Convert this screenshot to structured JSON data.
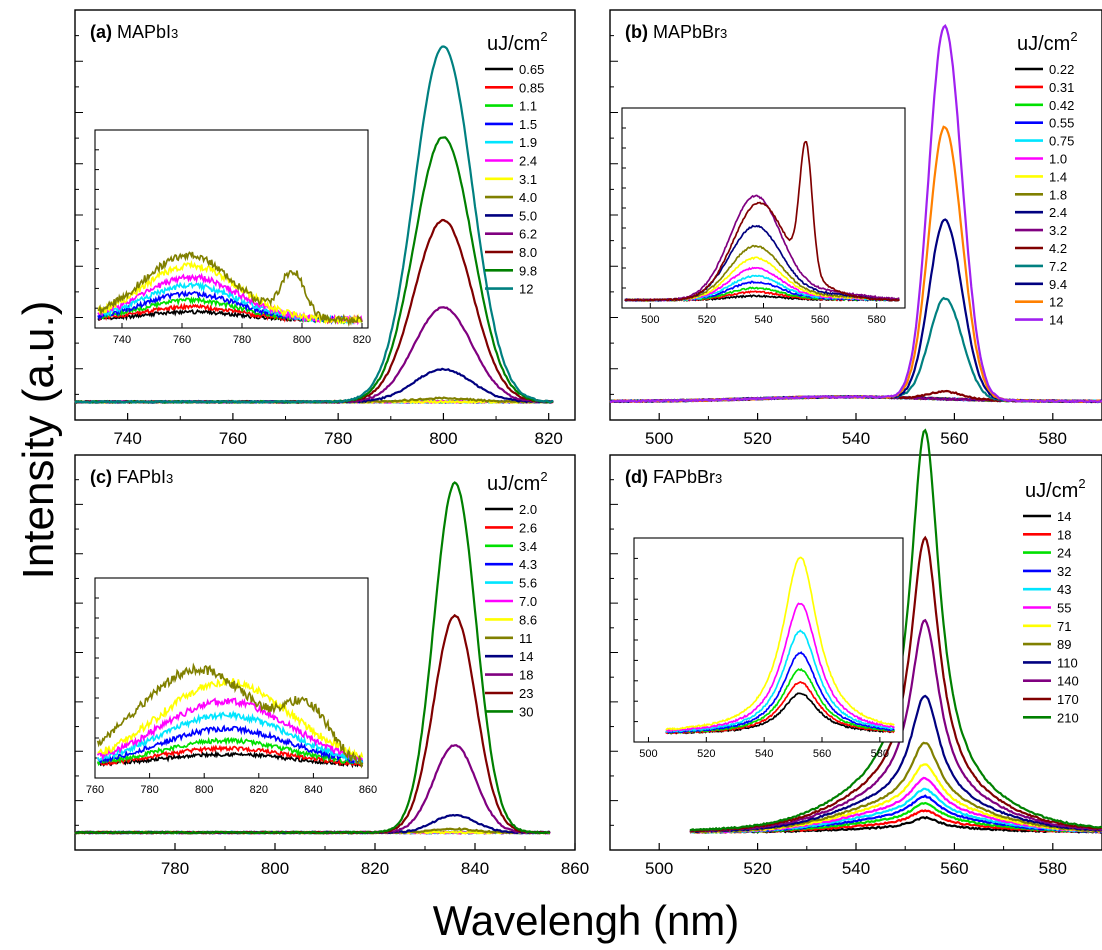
{
  "figure": {
    "ylabel": "Intensity (a.u.)",
    "xlabel": "Wavelengh (nm)",
    "legend_title": "uJ/cm",
    "legend_title_sup": "2"
  },
  "chart_data": [
    {
      "type": "line",
      "panel_label": "(a)",
      "title": "MAPbI",
      "title_sub": "3",
      "xlim": [
        730,
        825
      ],
      "ylim": [
        -0.05,
        1.08
      ],
      "xticks": [
        740,
        760,
        780,
        800,
        820
      ],
      "grid": false,
      "legend_position": "top-right",
      "peak": {
        "center": 800,
        "width": 5.5,
        "shift": -0.06
      },
      "series": [
        {
          "name": "0.65",
          "color": "#000000",
          "peak": 0.0
        },
        {
          "name": "0.85",
          "color": "#ff0000",
          "peak": 0.0
        },
        {
          "name": "1.1",
          "color": "#00e000",
          "peak": 0.0
        },
        {
          "name": "1.5",
          "color": "#0000ff",
          "peak": 0.0
        },
        {
          "name": "1.9",
          "color": "#00e5ff",
          "peak": 0.0
        },
        {
          "name": "2.4",
          "color": "#ff00ff",
          "peak": 0.0
        },
        {
          "name": "3.1",
          "color": "#ffff00",
          "peak": 0.0
        },
        {
          "name": "4.0",
          "color": "#808000",
          "peak": 0.01
        },
        {
          "name": "5.0",
          "color": "#000080",
          "peak": 0.09
        },
        {
          "name": "6.2",
          "color": "#800080",
          "peak": 0.26
        },
        {
          "name": "8.0",
          "color": "#800000",
          "peak": 0.5
        },
        {
          "name": "9.8",
          "color": "#008000",
          "peak": 0.73
        },
        {
          "name": "12",
          "color": "#008080",
          "peak": 0.98
        }
      ],
      "inset": {
        "xlim": [
          731,
          822
        ],
        "xticks": [
          740,
          760,
          780,
          800,
          820
        ],
        "series_amplitudes": [
          0.05,
          0.08,
          0.12,
          0.16,
          0.21,
          0.26,
          0.33,
          0.42,
          0.0,
          0.0,
          0.0,
          0.0,
          0.0
        ]
      }
    },
    {
      "type": "line",
      "panel_label": "(b)",
      "title": "MAPbBr",
      "title_sub": "3",
      "xlim": [
        490,
        590
      ],
      "ylim": [
        -0.05,
        1.05
      ],
      "xticks": [
        500,
        520,
        540,
        560,
        580
      ],
      "grid": false,
      "legend_position": "top-right",
      "peak": {
        "center": 558,
        "width": 3.2,
        "shift": 0.1
      },
      "series": [
        {
          "name": "0.22",
          "color": "#000000",
          "peak": 0.0
        },
        {
          "name": "0.31",
          "color": "#ff0000",
          "peak": 0.0
        },
        {
          "name": "0.42",
          "color": "#00e000",
          "peak": 0.0
        },
        {
          "name": "0.55",
          "color": "#0000ff",
          "peak": 0.0
        },
        {
          "name": "0.75",
          "color": "#00e5ff",
          "peak": 0.0
        },
        {
          "name": "1.0",
          "color": "#ff00ff",
          "peak": 0.0
        },
        {
          "name": "1.4",
          "color": "#ffff00",
          "peak": 0.0
        },
        {
          "name": "1.8",
          "color": "#808000",
          "peak": 0.0
        },
        {
          "name": "2.4",
          "color": "#000080",
          "peak": 0.0
        },
        {
          "name": "3.2",
          "color": "#800080",
          "peak": 0.0
        },
        {
          "name": "4.2",
          "color": "#800000",
          "peak": 0.02
        },
        {
          "name": "7.2",
          "color": "#008080",
          "peak": 0.27
        },
        {
          "name": "9.4",
          "color": "#000080",
          "peak": 0.48
        },
        {
          "name": "12",
          "color": "#ff8000",
          "peak": 0.73
        },
        {
          "name": "14",
          "color": "#a020f0",
          "peak": 1.0
        }
      ],
      "inset": {
        "xlim": [
          490,
          590
        ],
        "xticks": [
          500,
          520,
          540,
          560,
          580
        ],
        "series_amplitudes": [
          0.02,
          0.04,
          0.06,
          0.09,
          0.12,
          0.16,
          0.21,
          0.27,
          0.37,
          0.52,
          0.68,
          0.0,
          0.0,
          0.0,
          0.0
        ]
      }
    },
    {
      "type": "line",
      "panel_label": "(c)",
      "title": "FAPbI",
      "title_sub": "3",
      "xlim": [
        760,
        860
      ],
      "ylim": [
        -0.05,
        1.08
      ],
      "xticks": [
        780,
        800,
        820,
        840,
        860
      ],
      "grid": false,
      "legend_position": "top-right",
      "peak": {
        "center": 836,
        "width": 4.2,
        "shift": -0.06
      },
      "series": [
        {
          "name": "2.0",
          "color": "#000000",
          "peak": 0.0
        },
        {
          "name": "2.6",
          "color": "#ff0000",
          "peak": 0.0
        },
        {
          "name": "3.4",
          "color": "#00e000",
          "peak": 0.0
        },
        {
          "name": "4.3",
          "color": "#0000ff",
          "peak": 0.0
        },
        {
          "name": "5.6",
          "color": "#00e5ff",
          "peak": 0.0
        },
        {
          "name": "7.0",
          "color": "#ff00ff",
          "peak": 0.0
        },
        {
          "name": "8.6",
          "color": "#ffff00",
          "peak": 0.0
        },
        {
          "name": "11",
          "color": "#808000",
          "peak": 0.01
        },
        {
          "name": "14",
          "color": "#000080",
          "peak": 0.05
        },
        {
          "name": "18",
          "color": "#800080",
          "peak": 0.25
        },
        {
          "name": "23",
          "color": "#800000",
          "peak": 0.62
        },
        {
          "name": "30",
          "color": "#008000",
          "peak": 1.0
        }
      ],
      "inset": {
        "xlim": [
          760,
          860
        ],
        "xticks": [
          760,
          780,
          800,
          820,
          840,
          860
        ],
        "series_amplitudes": [
          0.06,
          0.09,
          0.13,
          0.19,
          0.26,
          0.33,
          0.43,
          0.56,
          0.0,
          0.0,
          0.0,
          0.0
        ]
      }
    },
    {
      "type": "line",
      "panel_label": "(d)",
      "title": "FAPbBr",
      "title_sub": "3",
      "xlim": [
        490,
        590
      ],
      "ylim": [
        -0.05,
        1.05
      ],
      "xticks": [
        500,
        520,
        540,
        560,
        580
      ],
      "grid": false,
      "legend_position": "top-right",
      "peak": {
        "center": 554,
        "width": 3.5,
        "shift": 0.02
      },
      "series": [
        {
          "name": "14",
          "color": "#000000",
          "peak": 0.03
        },
        {
          "name": "18",
          "color": "#ff0000",
          "peak": 0.04
        },
        {
          "name": "24",
          "color": "#00e000",
          "peak": 0.05
        },
        {
          "name": "32",
          "color": "#0000ff",
          "peak": 0.06
        },
        {
          "name": "43",
          "color": "#00e5ff",
          "peak": 0.07
        },
        {
          "name": "55",
          "color": "#ff00ff",
          "peak": 0.09
        },
        {
          "name": "71",
          "color": "#ffff00",
          "peak": 0.12
        },
        {
          "name": "89",
          "color": "#808000",
          "peak": 0.17
        },
        {
          "name": "110",
          "color": "#000080",
          "peak": 0.29
        },
        {
          "name": "140",
          "color": "#800080",
          "peak": 0.49
        },
        {
          "name": "170",
          "color": "#800000",
          "peak": 0.71
        },
        {
          "name": "210",
          "color": "#008000",
          "peak": 1.0
        }
      ],
      "inset": {
        "xlim": [
          495,
          588
        ],
        "xticks": [
          500,
          520,
          540,
          560,
          580
        ],
        "series_amplitudes": [
          0.22,
          0.28,
          0.35,
          0.44,
          0.56,
          0.71,
          0.96,
          0.0,
          0.0,
          0.0,
          0.0,
          0.0
        ]
      }
    }
  ]
}
